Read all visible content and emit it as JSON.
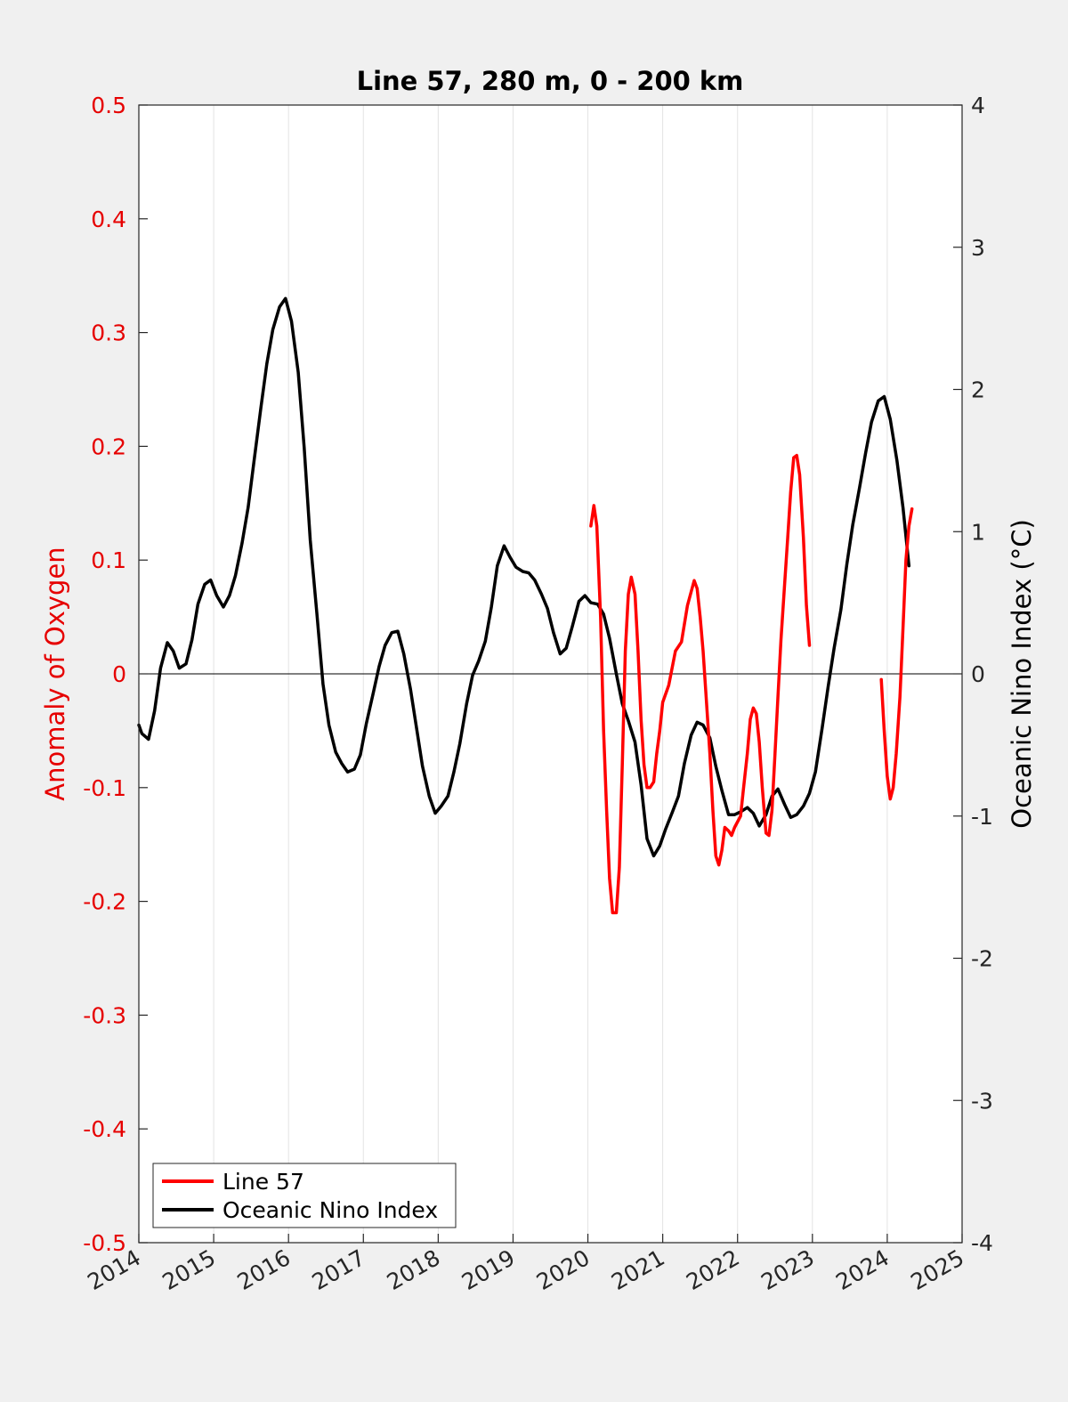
{
  "chart_data": {
    "type": "line",
    "title": "Line 57, 280 m, 0 - 200 km",
    "ylabel_left": "Anomaly of Oxygen",
    "ylabel_right": "Oceanic Nino Index (°C)",
    "xlim": [
      2014,
      2025
    ],
    "ylim_left": [
      -0.5,
      0.5
    ],
    "ylim_right": [
      -4,
      4
    ],
    "grid": "vertical lines at year ticks",
    "legend_position": "bottom-left",
    "x_ticks": [
      "2014",
      "2015",
      "2016",
      "2017",
      "2018",
      "2019",
      "2020",
      "2021",
      "2022",
      "2023",
      "2024",
      "2025"
    ],
    "y_ticks_left": [
      "0.5",
      "0.4",
      "0.3",
      "0.2",
      "0.1",
      "0",
      "-0.1",
      "-0.2",
      "-0.3",
      "-0.4",
      "-0.5"
    ],
    "y_ticks_right": [
      "4",
      "3",
      "2",
      "1",
      "0",
      "-1",
      "-2",
      "-3",
      "-4"
    ],
    "colors": {
      "line57": "#ff0000",
      "oni": "#000000",
      "left_axis": "#e60000"
    },
    "series": [
      {
        "name": "Line 57",
        "axis": "left",
        "segments": [
          [
            [
              2020.04,
              0.13
            ],
            [
              2020.08,
              0.148
            ],
            [
              2020.12,
              0.13
            ],
            [
              2020.17,
              0.05
            ],
            [
              2020.21,
              -0.05
            ],
            [
              2020.25,
              -0.12
            ],
            [
              2020.29,
              -0.18
            ],
            [
              2020.33,
              -0.21
            ],
            [
              2020.38,
              -0.21
            ],
            [
              2020.42,
              -0.17
            ],
            [
              2020.46,
              -0.08
            ],
            [
              2020.5,
              0.02
            ],
            [
              2020.54,
              0.07
            ],
            [
              2020.58,
              0.085
            ],
            [
              2020.63,
              0.07
            ],
            [
              2020.67,
              0.02
            ],
            [
              2020.71,
              -0.04
            ],
            [
              2020.75,
              -0.08
            ],
            [
              2020.79,
              -0.1
            ],
            [
              2020.83,
              -0.1
            ],
            [
              2020.88,
              -0.095
            ],
            [
              2020.92,
              -0.07
            ],
            [
              2020.96,
              -0.05
            ],
            [
              2021.0,
              -0.025
            ],
            [
              2021.08,
              -0.01
            ],
            [
              2021.17,
              0.02
            ],
            [
              2021.25,
              0.028
            ],
            [
              2021.33,
              0.06
            ],
            [
              2021.42,
              0.082
            ],
            [
              2021.46,
              0.075
            ],
            [
              2021.5,
              0.05
            ],
            [
              2021.54,
              0.02
            ],
            [
              2021.58,
              -0.02
            ],
            [
              2021.63,
              -0.07
            ],
            [
              2021.67,
              -0.12
            ],
            [
              2021.71,
              -0.16
            ],
            [
              2021.75,
              -0.168
            ],
            [
              2021.79,
              -0.155
            ],
            [
              2021.83,
              -0.135
            ],
            [
              2021.88,
              -0.138
            ],
            [
              2021.92,
              -0.142
            ],
            [
              2021.96,
              -0.135
            ],
            [
              2022.04,
              -0.125
            ],
            [
              2022.08,
              -0.1
            ],
            [
              2022.13,
              -0.07
            ],
            [
              2022.17,
              -0.04
            ],
            [
              2022.21,
              -0.03
            ],
            [
              2022.25,
              -0.035
            ],
            [
              2022.29,
              -0.06
            ],
            [
              2022.33,
              -0.1
            ],
            [
              2022.38,
              -0.14
            ],
            [
              2022.42,
              -0.142
            ],
            [
              2022.46,
              -0.12
            ],
            [
              2022.5,
              -0.07
            ],
            [
              2022.54,
              -0.02
            ],
            [
              2022.58,
              0.03
            ],
            [
              2022.63,
              0.08
            ],
            [
              2022.67,
              0.12
            ],
            [
              2022.71,
              0.16
            ],
            [
              2022.75,
              0.19
            ],
            [
              2022.79,
              0.192
            ],
            [
              2022.83,
              0.175
            ],
            [
              2022.88,
              0.12
            ],
            [
              2022.92,
              0.06
            ],
            [
              2022.96,
              0.025
            ]
          ],
          [
            [
              2023.92,
              -0.005
            ],
            [
              2023.96,
              -0.05
            ],
            [
              2024.0,
              -0.09
            ],
            [
              2024.04,
              -0.11
            ],
            [
              2024.08,
              -0.1
            ],
            [
              2024.12,
              -0.07
            ],
            [
              2024.17,
              -0.02
            ],
            [
              2024.21,
              0.04
            ],
            [
              2024.25,
              0.1
            ],
            [
              2024.29,
              0.13
            ],
            [
              2024.33,
              0.145
            ]
          ]
        ]
      },
      {
        "name": "Oceanic Nino Index",
        "axis": "right",
        "points": [
          [
            2014.0,
            -0.36
          ],
          [
            2014.04,
            -0.42
          ],
          [
            2014.13,
            -0.46
          ],
          [
            2014.21,
            -0.26
          ],
          [
            2014.29,
            0.04
          ],
          [
            2014.38,
            0.22
          ],
          [
            2014.46,
            0.16
          ],
          [
            2014.54,
            0.04
          ],
          [
            2014.63,
            0.07
          ],
          [
            2014.71,
            0.24
          ],
          [
            2014.79,
            0.49
          ],
          [
            2014.88,
            0.63
          ],
          [
            2014.96,
            0.66
          ],
          [
            2015.04,
            0.55
          ],
          [
            2015.13,
            0.47
          ],
          [
            2015.21,
            0.55
          ],
          [
            2015.29,
            0.69
          ],
          [
            2015.38,
            0.92
          ],
          [
            2015.46,
            1.17
          ],
          [
            2015.54,
            1.5
          ],
          [
            2015.63,
            1.87
          ],
          [
            2015.71,
            2.18
          ],
          [
            2015.79,
            2.42
          ],
          [
            2015.88,
            2.58
          ],
          [
            2015.96,
            2.64
          ],
          [
            2016.04,
            2.48
          ],
          [
            2016.13,
            2.12
          ],
          [
            2016.21,
            1.59
          ],
          [
            2016.29,
            0.94
          ],
          [
            2016.38,
            0.42
          ],
          [
            2016.46,
            -0.07
          ],
          [
            2016.54,
            -0.36
          ],
          [
            2016.63,
            -0.55
          ],
          [
            2016.71,
            -0.63
          ],
          [
            2016.79,
            -0.69
          ],
          [
            2016.88,
            -0.67
          ],
          [
            2016.96,
            -0.57
          ],
          [
            2017.04,
            -0.35
          ],
          [
            2017.13,
            -0.14
          ],
          [
            2017.21,
            0.05
          ],
          [
            2017.29,
            0.2
          ],
          [
            2017.38,
            0.29
          ],
          [
            2017.46,
            0.3
          ],
          [
            2017.54,
            0.14
          ],
          [
            2017.63,
            -0.11
          ],
          [
            2017.71,
            -0.38
          ],
          [
            2017.79,
            -0.65
          ],
          [
            2017.88,
            -0.86
          ],
          [
            2017.96,
            -0.98
          ],
          [
            2018.04,
            -0.93
          ],
          [
            2018.13,
            -0.86
          ],
          [
            2018.21,
            -0.69
          ],
          [
            2018.29,
            -0.49
          ],
          [
            2018.38,
            -0.21
          ],
          [
            2018.46,
            -0.01
          ],
          [
            2018.54,
            0.09
          ],
          [
            2018.63,
            0.23
          ],
          [
            2018.71,
            0.47
          ],
          [
            2018.79,
            0.76
          ],
          [
            2018.88,
            0.9
          ],
          [
            2018.96,
            0.82
          ],
          [
            2019.04,
            0.75
          ],
          [
            2019.13,
            0.72
          ],
          [
            2019.21,
            0.71
          ],
          [
            2019.29,
            0.66
          ],
          [
            2019.38,
            0.56
          ],
          [
            2019.46,
            0.46
          ],
          [
            2019.54,
            0.29
          ],
          [
            2019.63,
            0.14
          ],
          [
            2019.71,
            0.18
          ],
          [
            2019.79,
            0.33
          ],
          [
            2019.88,
            0.51
          ],
          [
            2019.96,
            0.55
          ],
          [
            2020.04,
            0.5
          ],
          [
            2020.13,
            0.49
          ],
          [
            2020.21,
            0.42
          ],
          [
            2020.29,
            0.25
          ],
          [
            2020.38,
            0.0
          ],
          [
            2020.46,
            -0.21
          ],
          [
            2020.54,
            -0.33
          ],
          [
            2020.63,
            -0.48
          ],
          [
            2020.71,
            -0.78
          ],
          [
            2020.79,
            -1.16
          ],
          [
            2020.88,
            -1.28
          ],
          [
            2020.96,
            -1.21
          ],
          [
            2021.04,
            -1.09
          ],
          [
            2021.13,
            -0.97
          ],
          [
            2021.21,
            -0.86
          ],
          [
            2021.29,
            -0.63
          ],
          [
            2021.38,
            -0.43
          ],
          [
            2021.46,
            -0.34
          ],
          [
            2021.54,
            -0.36
          ],
          [
            2021.63,
            -0.45
          ],
          [
            2021.71,
            -0.65
          ],
          [
            2021.79,
            -0.82
          ],
          [
            2021.88,
            -0.99
          ],
          [
            2021.96,
            -0.99
          ],
          [
            2022.04,
            -0.97
          ],
          [
            2022.13,
            -0.94
          ],
          [
            2022.21,
            -0.98
          ],
          [
            2022.29,
            -1.07
          ],
          [
            2022.38,
            -0.99
          ],
          [
            2022.46,
            -0.86
          ],
          [
            2022.54,
            -0.81
          ],
          [
            2022.63,
            -0.92
          ],
          [
            2022.71,
            -1.01
          ],
          [
            2022.79,
            -0.99
          ],
          [
            2022.88,
            -0.93
          ],
          [
            2022.96,
            -0.84
          ],
          [
            2023.04,
            -0.69
          ],
          [
            2023.13,
            -0.38
          ],
          [
            2023.21,
            -0.09
          ],
          [
            2023.29,
            0.18
          ],
          [
            2023.38,
            0.45
          ],
          [
            2023.46,
            0.77
          ],
          [
            2023.54,
            1.05
          ],
          [
            2023.63,
            1.31
          ],
          [
            2023.71,
            1.55
          ],
          [
            2023.79,
            1.77
          ],
          [
            2023.88,
            1.92
          ],
          [
            2023.96,
            1.95
          ],
          [
            2024.04,
            1.79
          ],
          [
            2024.13,
            1.5
          ],
          [
            2024.21,
            1.17
          ],
          [
            2024.29,
            0.76
          ]
        ]
      }
    ]
  }
}
